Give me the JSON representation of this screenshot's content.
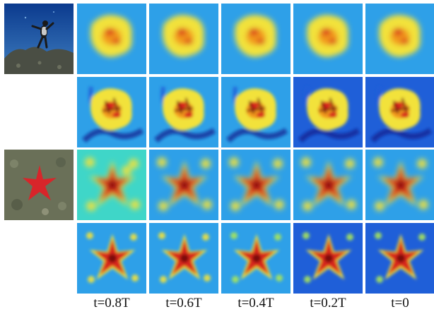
{
  "figure": {
    "column_labels": [
      "t=0.8T",
      "t=0.6T",
      "t=0.4T",
      "t=0.2T",
      "t=0"
    ],
    "photos": [
      {
        "subject": "scuba diver",
        "colors": {
          "water_top": "#0b3a8e",
          "water_bottom": "#3f7fc0",
          "rock": "#4a4e44"
        }
      },
      {
        "subject": "red starfish",
        "colors": {
          "seabed": "#6a7058",
          "starfish": "#d8252a"
        }
      }
    ],
    "heatmap_colors": [
      "#0a1a8c",
      "#1f5fd8",
      "#2ea0e8",
      "#3fd6c8",
      "#a8e65a",
      "#f2e23a",
      "#f29a1e",
      "#d8261a",
      "#7a0a0a"
    ],
    "rows": [
      {
        "target": "diver",
        "style": "smooth",
        "background_level": [
          0.3,
          0.3,
          0.3,
          0.3,
          0.3
        ]
      },
      {
        "target": "diver",
        "style": "detailed",
        "background_level": [
          0.28,
          0.24,
          0.22,
          0.14,
          0.08
        ]
      },
      {
        "target": "starfish",
        "style": "smooth",
        "background_level": [
          0.32,
          0.3,
          0.28,
          0.28,
          0.26
        ]
      },
      {
        "target": "starfish",
        "style": "detailed",
        "background_level": [
          0.3,
          0.26,
          0.2,
          0.14,
          0.1
        ]
      }
    ]
  }
}
